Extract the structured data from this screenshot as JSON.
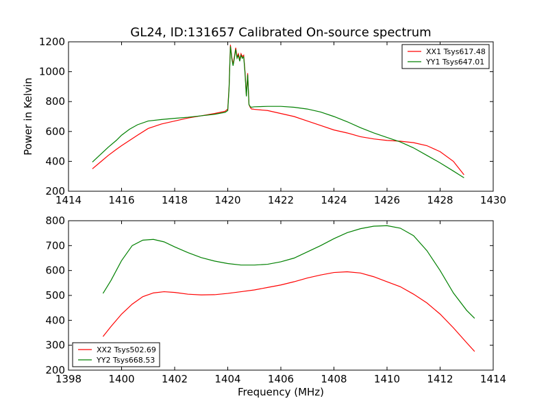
{
  "title": "GL24, ID:131657 Calibrated On-source spectrum",
  "colors": {
    "red": "#ff0000",
    "green": "#008000"
  },
  "chart_data": [
    {
      "type": "line",
      "name": "top",
      "title": "GL24, ID:131657 Calibrated On-source spectrum",
      "xlabel": "",
      "ylabel": "Power in Kelvin",
      "xlim": [
        1414,
        1430
      ],
      "ylim": [
        200,
        1200
      ],
      "xticks": [
        1414,
        1416,
        1418,
        1420,
        1422,
        1424,
        1426,
        1428,
        1430
      ],
      "yticks": [
        200,
        400,
        600,
        800,
        1000,
        1200
      ],
      "legend_loc": "upper right",
      "series": [
        {
          "name": "XX1 Tsys617.48",
          "color": "#ff0000",
          "x": [
            1414.9,
            1415.2,
            1415.5,
            1415.8,
            1416.0,
            1416.3,
            1416.6,
            1417.0,
            1417.5,
            1418.0,
            1418.5,
            1419.0,
            1419.5,
            1419.9,
            1420.0,
            1420.05,
            1420.1,
            1420.15,
            1420.2,
            1420.25,
            1420.3,
            1420.35,
            1420.4,
            1420.45,
            1420.5,
            1420.55,
            1420.6,
            1420.65,
            1420.7,
            1420.75,
            1420.8,
            1420.85,
            1420.9,
            1420.95,
            1421.0,
            1421.5,
            1422.0,
            1422.5,
            1423.0,
            1423.5,
            1424.0,
            1424.5,
            1425.0,
            1425.5,
            1426.0,
            1426.5,
            1427.0,
            1427.5,
            1428.0,
            1428.5,
            1428.9
          ],
          "y": [
            350,
            395,
            440,
            480,
            505,
            540,
            575,
            620,
            650,
            670,
            690,
            705,
            720,
            735,
            750,
            900,
            1180,
            1100,
            1050,
            1100,
            1160,
            1100,
            1120,
            1080,
            1120,
            1100,
            1110,
            1000,
            840,
            990,
            780,
            760,
            750,
            750,
            748,
            740,
            720,
            700,
            670,
            640,
            610,
            590,
            565,
            550,
            540,
            535,
            525,
            505,
            465,
            400,
            310
          ]
        },
        {
          "name": "YY1 Tsys647.01",
          "color": "#008000",
          "x": [
            1414.9,
            1415.2,
            1415.5,
            1415.8,
            1416.0,
            1416.3,
            1416.6,
            1417.0,
            1417.5,
            1418.0,
            1418.5,
            1419.0,
            1419.5,
            1419.9,
            1420.0,
            1420.05,
            1420.1,
            1420.15,
            1420.2,
            1420.25,
            1420.3,
            1420.35,
            1420.4,
            1420.45,
            1420.5,
            1420.55,
            1420.6,
            1420.65,
            1420.7,
            1420.75,
            1420.8,
            1420.85,
            1420.9,
            1420.95,
            1421.0,
            1421.5,
            1422.0,
            1422.5,
            1423.0,
            1423.5,
            1424.0,
            1424.5,
            1425.0,
            1425.5,
            1426.0,
            1426.5,
            1427.0,
            1427.5,
            1428.0,
            1428.5,
            1428.9
          ],
          "y": [
            395,
            445,
            495,
            540,
            575,
            615,
            645,
            670,
            680,
            688,
            695,
            705,
            715,
            728,
            740,
            890,
            1170,
            1090,
            1040,
            1090,
            1150,
            1090,
            1110,
            1070,
            1110,
            1090,
            1100,
            990,
            835,
            980,
            780,
            765,
            762,
            764,
            765,
            768,
            768,
            762,
            750,
            730,
            700,
            665,
            625,
            590,
            560,
            530,
            490,
            440,
            390,
            335,
            290
          ]
        }
      ]
    },
    {
      "type": "line",
      "name": "bottom",
      "title": "",
      "xlabel": "Frequency (MHz)",
      "ylabel": "",
      "xlim": [
        1398,
        1414
      ],
      "ylim": [
        200,
        800
      ],
      "xticks": [
        1398,
        1400,
        1402,
        1404,
        1406,
        1408,
        1410,
        1412,
        1414
      ],
      "yticks": [
        200,
        300,
        400,
        500,
        600,
        700,
        800
      ],
      "legend_loc": "lower left",
      "series": [
        {
          "name": "XX2 Tsys502.69",
          "color": "#ff0000",
          "x": [
            1399.3,
            1399.6,
            1400.0,
            1400.4,
            1400.8,
            1401.2,
            1401.6,
            1402.0,
            1402.5,
            1403.0,
            1403.5,
            1404.0,
            1404.5,
            1405.0,
            1405.5,
            1406.0,
            1406.5,
            1407.0,
            1407.5,
            1408.0,
            1408.5,
            1409.0,
            1409.5,
            1410.0,
            1410.5,
            1411.0,
            1411.5,
            1412.0,
            1412.5,
            1413.0,
            1413.3
          ],
          "y": [
            335,
            375,
            425,
            465,
            495,
            510,
            515,
            512,
            505,
            502,
            503,
            508,
            515,
            522,
            532,
            542,
            555,
            570,
            582,
            592,
            595,
            590,
            575,
            555,
            535,
            505,
            470,
            425,
            370,
            310,
            275
          ]
        },
        {
          "name": "YY2 Tsys668.53",
          "color": "#008000",
          "x": [
            1399.3,
            1399.6,
            1400.0,
            1400.4,
            1400.8,
            1401.2,
            1401.6,
            1402.0,
            1402.5,
            1403.0,
            1403.5,
            1404.0,
            1404.5,
            1405.0,
            1405.5,
            1406.0,
            1406.5,
            1407.0,
            1407.5,
            1408.0,
            1408.5,
            1409.0,
            1409.5,
            1410.0,
            1410.5,
            1411.0,
            1411.5,
            1412.0,
            1412.5,
            1413.0,
            1413.3
          ],
          "y": [
            508,
            560,
            640,
            700,
            722,
            725,
            715,
            695,
            672,
            652,
            638,
            628,
            622,
            622,
            625,
            635,
            650,
            675,
            700,
            728,
            752,
            768,
            778,
            780,
            770,
            740,
            680,
            600,
            510,
            440,
            408
          ]
        }
      ]
    }
  ]
}
